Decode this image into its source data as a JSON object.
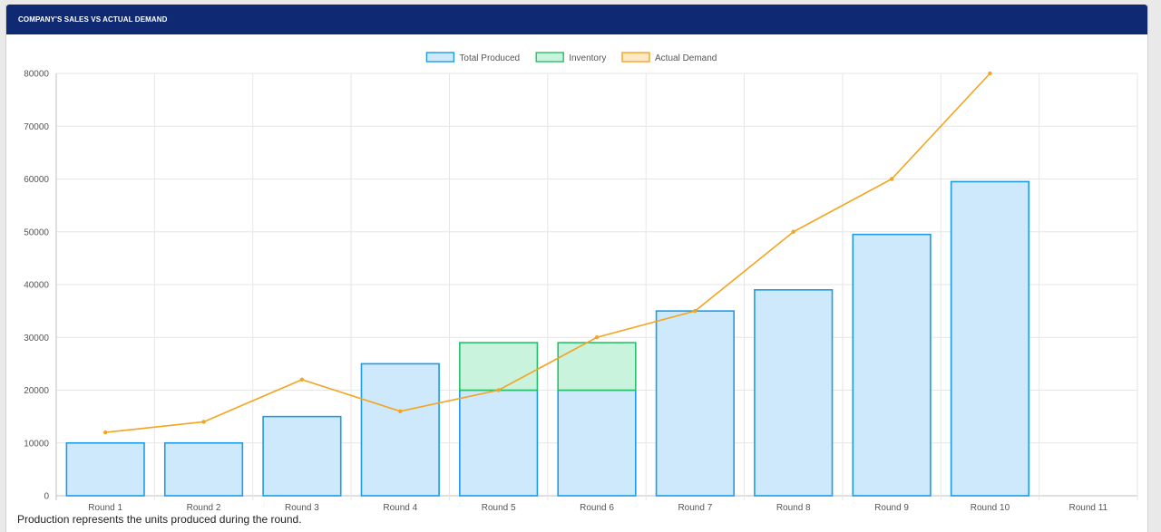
{
  "header": {
    "title": "COMPANY'S SALES VS ACTUAL DEMAND"
  },
  "footnote": "Production represents the units produced during the round.",
  "colors": {
    "produced_fill": "#cde9fb",
    "produced_stroke": "#1e9be6",
    "inventory_fill": "#c9f3dc",
    "inventory_stroke": "#27c06a",
    "demand_fill": "#fde7c4",
    "demand_stroke": "#f4a41f",
    "header_bg": "#0f2a73"
  },
  "chart_data": {
    "type": "bar",
    "categories": [
      "Round 1",
      "Round 2",
      "Round 3",
      "Round 4",
      "Round 5",
      "Round 6",
      "Round 7",
      "Round 8",
      "Round 9",
      "Round 10",
      "Round 11"
    ],
    "series": [
      {
        "name": "Total Produced",
        "type": "bar",
        "stack": true,
        "values": [
          10000,
          10000,
          15000,
          25000,
          20000,
          20000,
          35000,
          39000,
          49500,
          59500,
          null
        ]
      },
      {
        "name": "Inventory",
        "type": "bar",
        "stack": true,
        "values": [
          0,
          0,
          0,
          0,
          9000,
          9000,
          0,
          0,
          0,
          0,
          null
        ]
      },
      {
        "name": "Actual Demand",
        "type": "line",
        "values": [
          12000,
          14000,
          22000,
          16000,
          20000,
          30000,
          35000,
          50000,
          60000,
          80000,
          null
        ]
      }
    ],
    "yticks": [
      "0",
      "10000",
      "20000",
      "30000",
      "40000",
      "50000",
      "60000",
      "70000",
      "80000"
    ],
    "ylim": [
      0,
      80000
    ],
    "grid": true,
    "legend": "top-center"
  }
}
